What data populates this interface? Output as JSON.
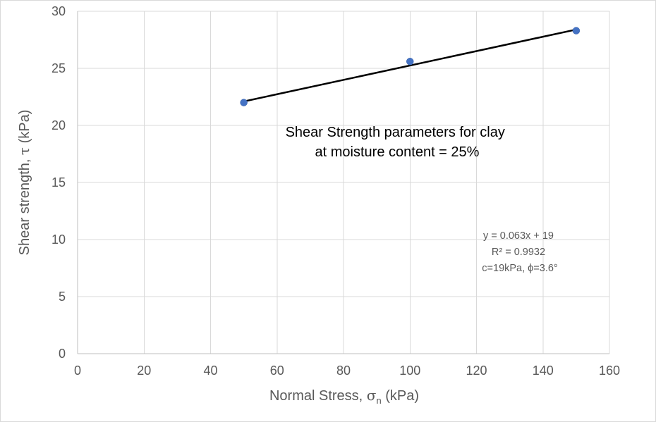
{
  "chart_data": {
    "type": "scatter",
    "inner_title": [
      "Shear Strength parameters for clay",
      "at moisture content = 25%"
    ],
    "xlabel": {
      "prefix": "Normal Stress, ",
      "symbol": "σ",
      "subscript": "n",
      "suffix": " (kPa)"
    },
    "ylabel": {
      "prefix": "Shear strength, ",
      "symbol": "τ",
      "suffix": " (kPa)"
    },
    "xlim": [
      0,
      160
    ],
    "ylim": [
      0,
      30
    ],
    "x_ticks": [
      0,
      20,
      40,
      60,
      80,
      100,
      120,
      140,
      160
    ],
    "y_ticks": [
      0,
      5,
      10,
      15,
      20,
      25,
      30
    ],
    "grid": true,
    "points": [
      {
        "x": 50,
        "y": 22.0
      },
      {
        "x": 100,
        "y": 25.6
      },
      {
        "x": 150,
        "y": 28.3
      }
    ],
    "trendline": {
      "x_start": 50,
      "y_start": 22.1,
      "x_end": 150,
      "y_end": 28.4
    },
    "equation_lines": [
      "y = 0.063x + 19",
      "R² = 0.9932",
      "c=19kPa, ϕ=3.6°"
    ],
    "colors": {
      "marker": "#4472c4",
      "trendline": "#000000",
      "grid": "#d9d9d9",
      "text": "#595959"
    }
  }
}
